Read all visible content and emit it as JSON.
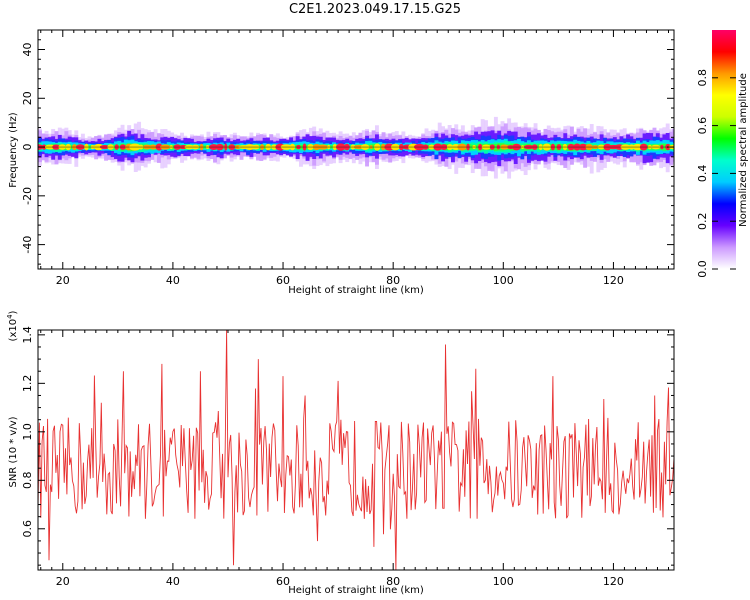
{
  "title": "C2E1.2023.049.17.15.G25",
  "chart_data": [
    {
      "type": "heatmap",
      "title": "",
      "xlabel": "Height of straight line (km)",
      "ylabel": "Frequency (Hz)",
      "xlim": [
        15.5,
        131
      ],
      "ylim": [
        -50,
        48
      ],
      "x_ticks": [
        20,
        40,
        60,
        80,
        100,
        120
      ],
      "y_ticks": [
        40,
        20,
        0,
        -20,
        -40
      ],
      "colorbar": {
        "label": "Normalized spectral amplitude",
        "ticks": [
          "0.0",
          "0.2",
          "0.4",
          "0.6",
          "0.8"
        ],
        "range": [
          0,
          1
        ],
        "colors": [
          "#ffffff",
          "#cc99ff",
          "#6600ff",
          "#0000ff",
          "#00ccff",
          "#00ffcc",
          "#00ff00",
          "#ccff00",
          "#ffff00",
          "#ff9900",
          "#ff0000",
          "#ff0066"
        ]
      },
      "signal_line_frequency": 0,
      "spread_hz": [
        [
          16,
          3.5
        ],
        [
          20,
          4
        ],
        [
          24,
          2
        ],
        [
          28,
          3
        ],
        [
          32,
          5
        ],
        [
          36,
          3.5
        ],
        [
          40,
          3
        ],
        [
          44,
          2.5
        ],
        [
          48,
          3
        ],
        [
          52,
          2.5
        ],
        [
          56,
          3
        ],
        [
          60,
          2.5
        ],
        [
          64,
          4
        ],
        [
          68,
          3
        ],
        [
          72,
          2.5
        ],
        [
          76,
          4
        ],
        [
          80,
          3
        ],
        [
          84,
          2.5
        ],
        [
          88,
          4.5
        ],
        [
          92,
          4
        ],
        [
          96,
          5
        ],
        [
          100,
          5.5
        ],
        [
          104,
          4.5
        ],
        [
          108,
          4
        ],
        [
          112,
          4.5
        ],
        [
          116,
          4
        ],
        [
          120,
          3.5
        ],
        [
          124,
          4
        ],
        [
          128,
          4.5
        ],
        [
          131,
          4
        ]
      ]
    },
    {
      "type": "line",
      "title": "",
      "xlabel": "Height of straight line (km)",
      "ylabel": "SNR (10 * v/v)",
      "y_multiplier": "(x10",
      "y_multiplier_exp": "4",
      "y_multiplier_close": ")",
      "xlim": [
        15.5,
        131
      ],
      "ylim": [
        0.43,
        1.42
      ],
      "x_ticks": [
        20,
        40,
        60,
        80,
        100,
        120
      ],
      "y_ticks": [
        "1.4",
        "1.2",
        "1.0",
        "0.8",
        "0.6"
      ],
      "y_tick_values": [
        1.4,
        1.2,
        1.0,
        0.8,
        0.6
      ],
      "color": "#e83030",
      "peaks": [
        [
          17.5,
          0.47
        ],
        [
          27,
          1.12
        ],
        [
          31,
          1.25
        ],
        [
          38,
          1.28
        ],
        [
          45,
          1.25
        ],
        [
          49.8,
          1.42
        ],
        [
          51,
          0.45
        ],
        [
          55.5,
          1.3
        ],
        [
          60,
          1.23
        ],
        [
          64,
          1.15
        ],
        [
          70,
          1.21
        ],
        [
          80.5,
          0.43
        ],
        [
          89.5,
          1.36
        ],
        [
          95,
          1.26
        ],
        [
          109,
          1.23
        ],
        [
          127.5,
          1.15
        ]
      ],
      "mean": 0.85
    }
  ]
}
